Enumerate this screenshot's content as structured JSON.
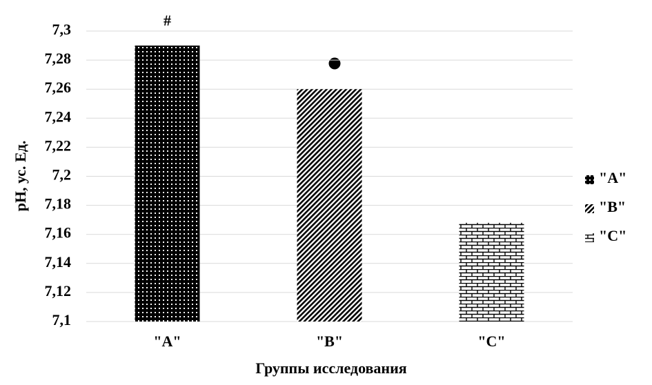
{
  "chart_data": {
    "type": "bar",
    "y_label": "pH, ус. Ед.",
    "x_label": "Группы исследования",
    "categories": [
      "\"A\"",
      "\"B\"",
      "\"C\""
    ],
    "values": [
      7.29,
      7.26,
      7.168
    ],
    "patterns": [
      "dots",
      "diagonal",
      "brick"
    ],
    "annotations": [
      "#"
    ],
    "ylim": [
      7.1,
      7.3
    ],
    "yticks": [
      {
        "value": 7.1,
        "label": "7,1"
      },
      {
        "value": 7.12,
        "label": "7,12"
      },
      {
        "value": 7.14,
        "label": "7,14"
      },
      {
        "value": 7.16,
        "label": "7,16"
      },
      {
        "value": 7.18,
        "label": "7,18"
      },
      {
        "value": 7.2,
        "label": "7,2"
      },
      {
        "value": 7.22,
        "label": "7,22"
      },
      {
        "value": 7.24,
        "label": "7,24"
      },
      {
        "value": 7.26,
        "label": "7,26"
      },
      {
        "value": 7.28,
        "label": "7,28"
      },
      {
        "value": 7.3,
        "label": "7,3"
      }
    ],
    "grid": true,
    "legend": "right"
  }
}
